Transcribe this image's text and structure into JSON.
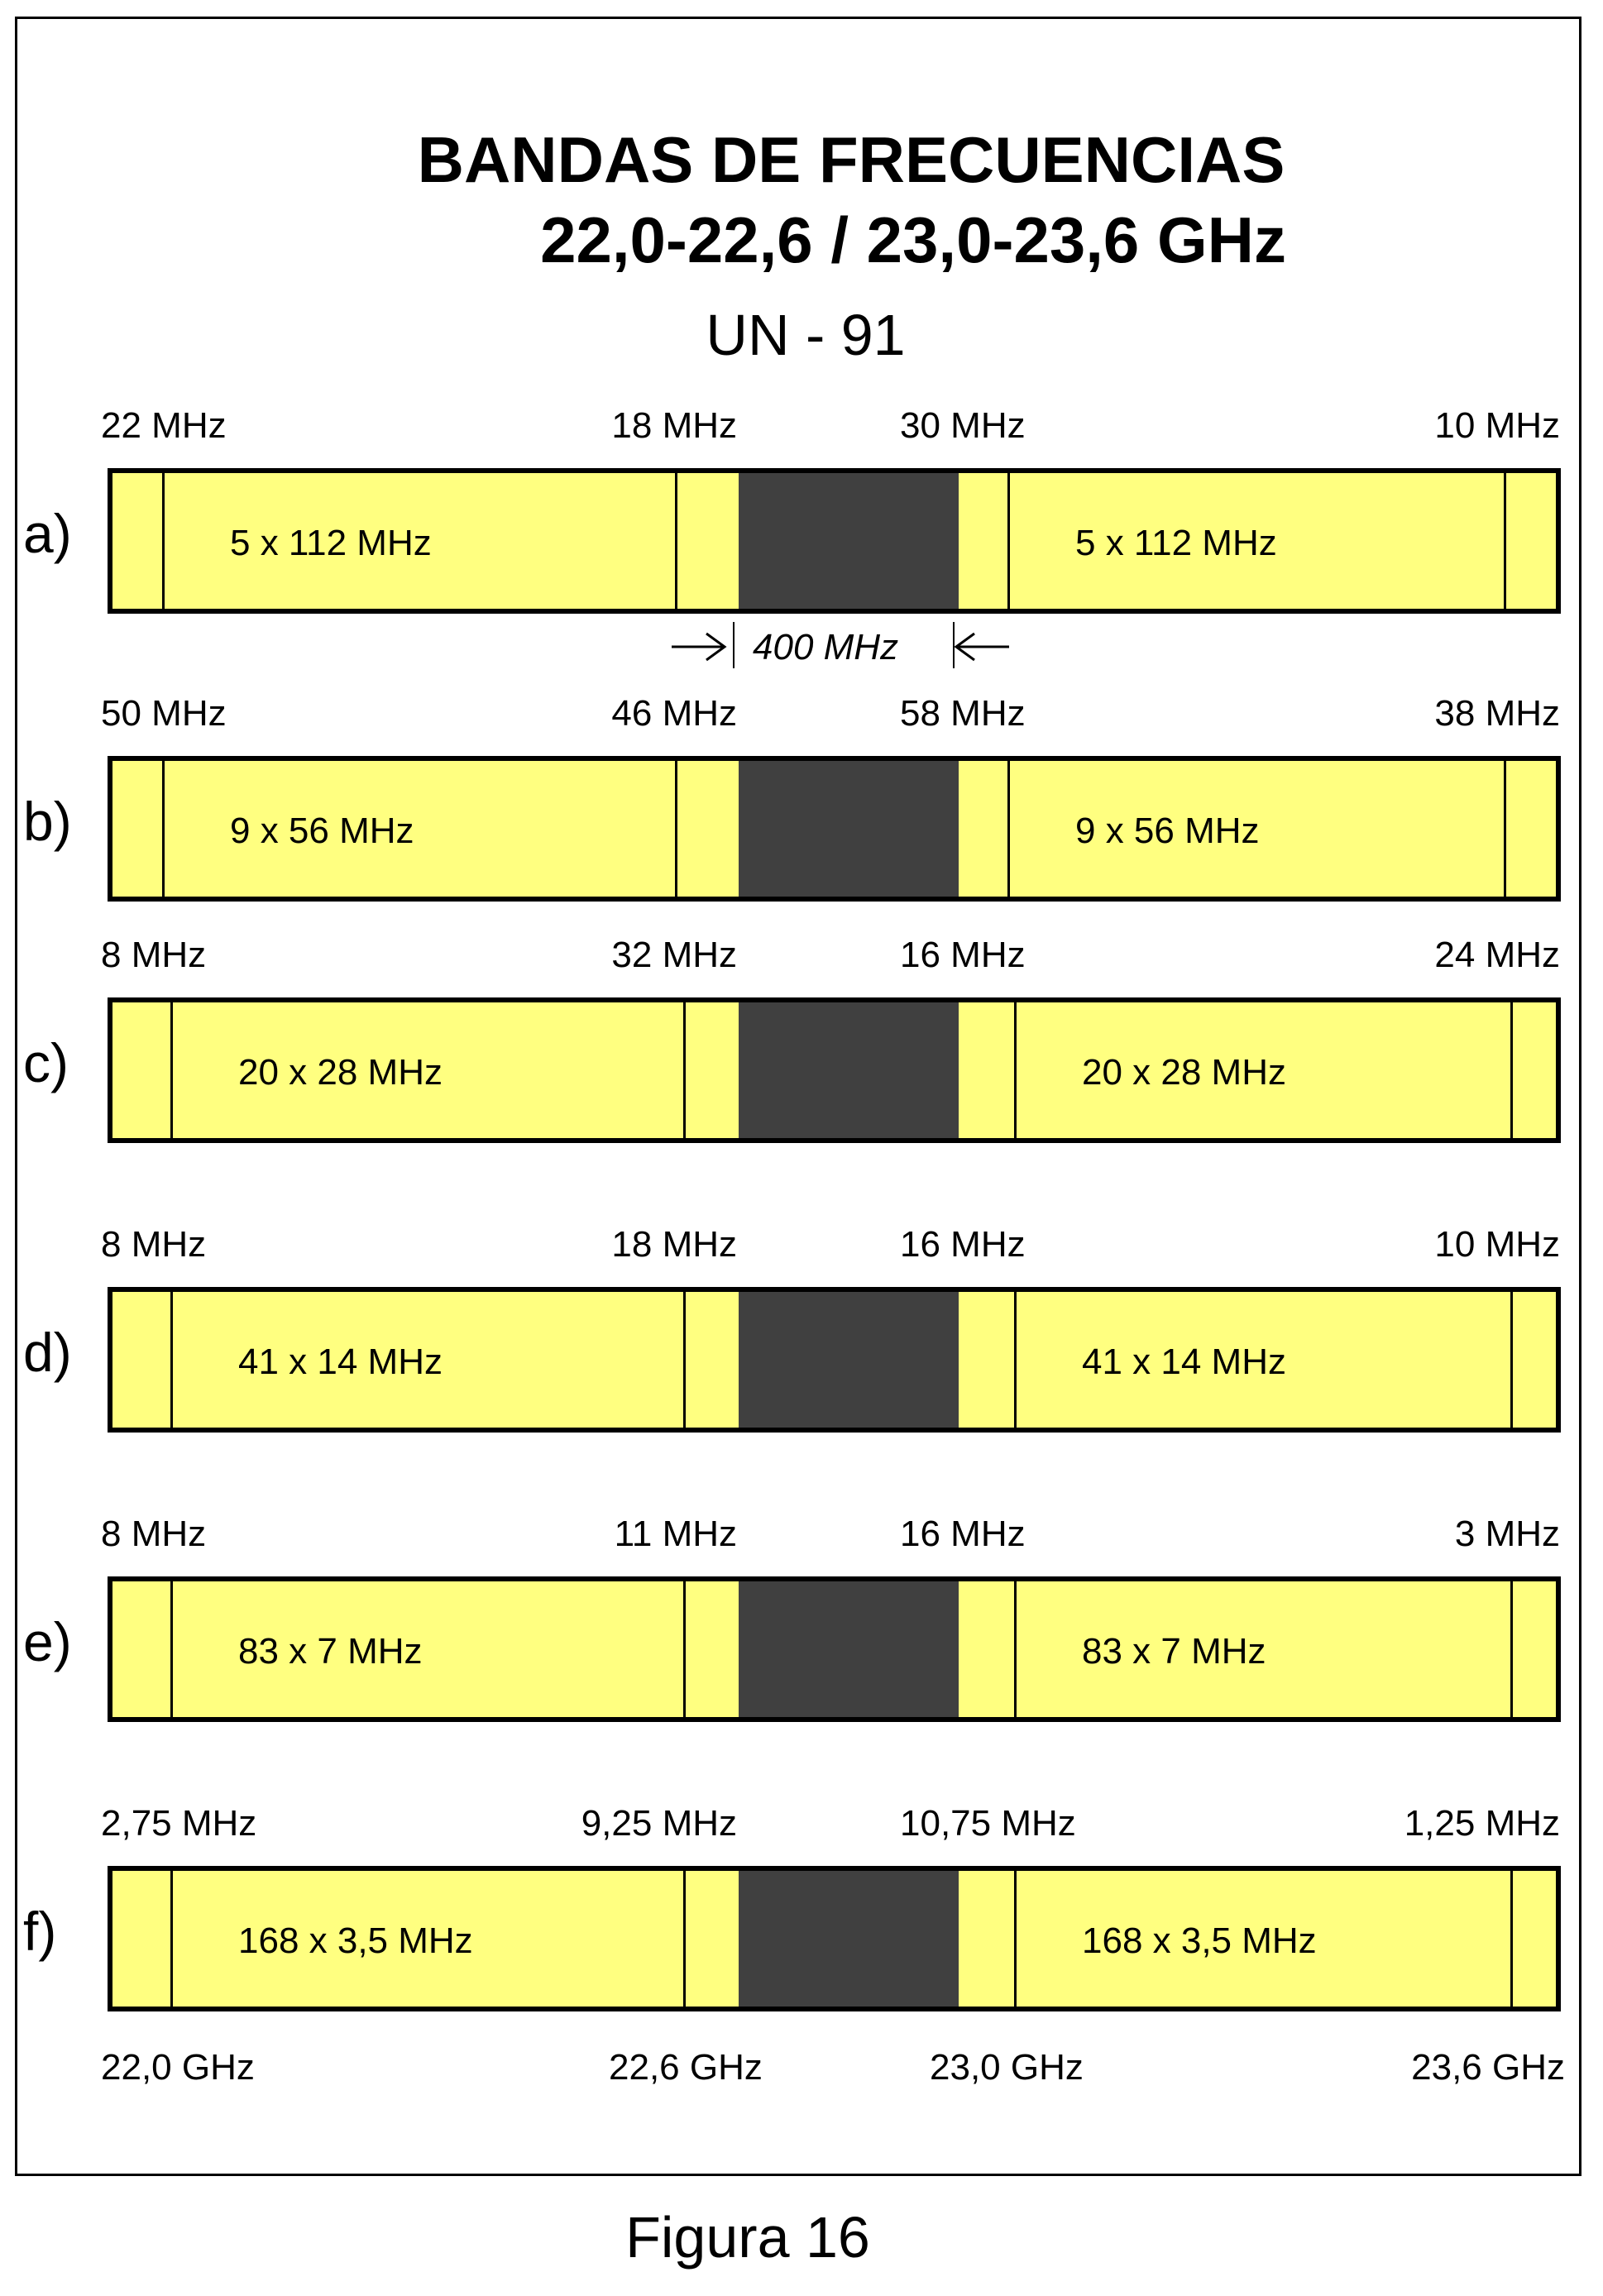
{
  "title": "BANDAS DE FRECUENCIAS",
  "subtitle": "22,0-22,6 / 23,0-23,6 GHz",
  "reference": "UN - 91",
  "separation_label": "400 MHz",
  "caption": "Figura 16",
  "colors": {
    "band": "#ffff80",
    "gap": "#404040",
    "line": "#000000"
  },
  "sections": [
    {
      "letter": "a)",
      "left_guard": "22 MHz",
      "mid_left_guard": "18 MHz",
      "mid_right_guard": "30 MHz",
      "right_guard": "10 MHz",
      "left_text": "5 x 112 MHz",
      "right_text": "5 x 112 MHz"
    },
    {
      "letter": "b)",
      "left_guard": "50 MHz",
      "mid_left_guard": "46 MHz",
      "mid_right_guard": "58 MHz",
      "right_guard": "38 MHz",
      "left_text": "9 x 56 MHz",
      "right_text": "9 x 56 MHz"
    },
    {
      "letter": "c)",
      "left_guard": "8 MHz",
      "mid_left_guard": "32 MHz",
      "mid_right_guard": "16 MHz",
      "right_guard": "24 MHz",
      "left_text": "20 x 28 MHz",
      "right_text": "20 x 28 MHz"
    },
    {
      "letter": "d)",
      "left_guard": "8 MHz",
      "mid_left_guard": "18 MHz",
      "mid_right_guard": "16 MHz",
      "right_guard": "10 MHz",
      "left_text": "41 x 14 MHz",
      "right_text": "41 x 14 MHz"
    },
    {
      "letter": "e)",
      "left_guard": "8 MHz",
      "mid_left_guard": "11 MHz",
      "mid_right_guard": "16 MHz",
      "right_guard": "3 MHz",
      "left_text": "83 x 7 MHz",
      "right_text": "83 x 7 MHz"
    },
    {
      "letter": "f)",
      "left_guard": "2,75 MHz",
      "mid_left_guard": "9,25 MHz",
      "mid_right_guard": "10,75 MHz",
      "right_guard": "1,25 MHz",
      "left_text": "168 x 3,5 MHz",
      "right_text": "168 x 3,5 MHz"
    }
  ],
  "axis": [
    "22,0 GHz",
    "22,6 GHz",
    "23,0 GHz",
    "23,6 GHz"
  ]
}
